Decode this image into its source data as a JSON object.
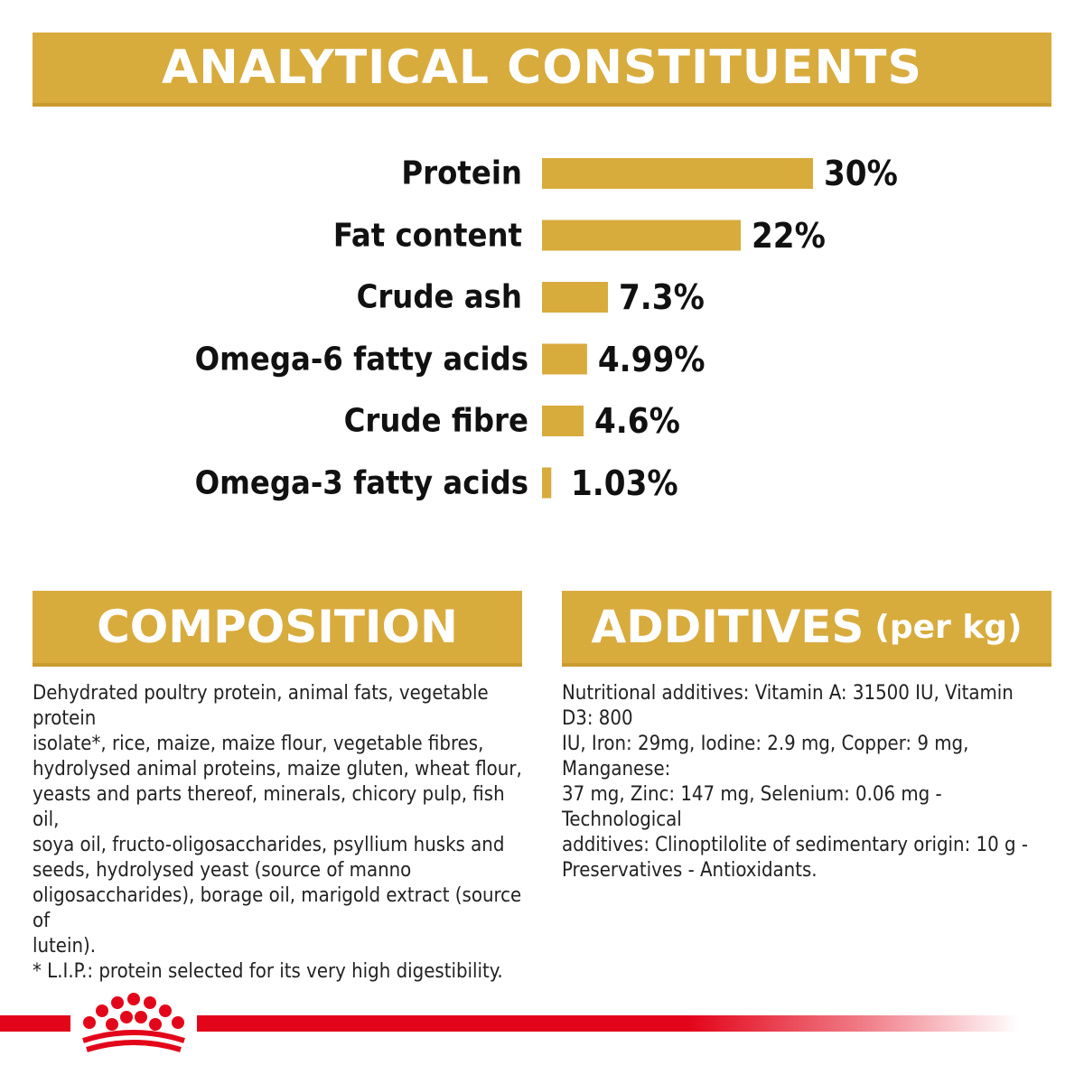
{
  "header": {
    "title": "ANALYTICAL CONSTITUENTS"
  },
  "colors": {
    "accent_gold": "#d8ab3d",
    "brand_red": "#e3061b"
  },
  "chart_data": {
    "type": "bar",
    "orientation": "horizontal",
    "title": "ANALYTICAL CONSTITUENTS",
    "categories": [
      "Protein",
      "Fat content",
      "Crude ash",
      "Omega-6 fatty acids",
      "Crude fibre",
      "Omega-3 fatty acids"
    ],
    "values": [
      30,
      22,
      7.3,
      4.99,
      4.6,
      1.03
    ],
    "value_labels": [
      "30%",
      "22%",
      "7.3%",
      "4.99%",
      "4.6%",
      "1.03%"
    ],
    "unit": "%",
    "xlim": [
      0,
      30
    ],
    "grid": false,
    "legend": "none"
  },
  "composition": {
    "title": "COMPOSITION",
    "lines": [
      "Dehydrated poultry protein, animal fats, vegetable protein",
      "isolate*, rice, maize, maize flour, vegetable fibres,",
      "hydrolysed animal proteins, maize gluten, wheat flour,",
      "yeasts and parts thereof, minerals, chicory pulp, fish oil,",
      "soya oil, fructo-oligosaccharides, psyllium husks and",
      "seeds, hydrolysed yeast (source of manno",
      "oligosaccharides), borage oil, marigold extract (source of",
      "lutein).",
      "* L.I.P.: protein selected for its very high digestibility."
    ]
  },
  "additives": {
    "title": "ADDITIVES",
    "title_suffix": "(per kg)",
    "lines": [
      "Nutritional additives: Vitamin A: 31500 IU, Vitamin D3: 800",
      "IU, Iron: 29mg, Iodine: 2.9 mg, Copper: 9 mg, Manganese:",
      "37 mg, Zinc: 147 mg, Selenium: 0.06 mg - Technological",
      "additives: Clinoptilolite of sedimentary origin: 10 g -",
      "Preservatives - Antioxidants."
    ]
  },
  "footer": {
    "logo_icon": "crown-icon"
  }
}
